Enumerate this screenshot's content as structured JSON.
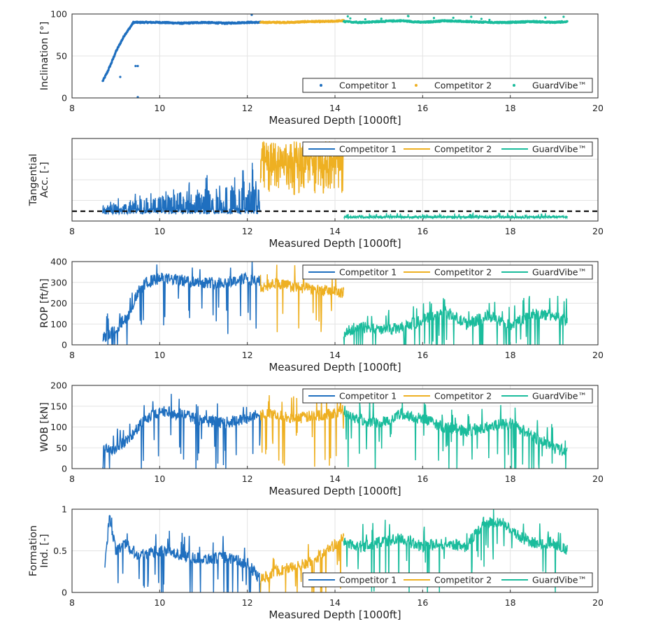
{
  "colors": {
    "competitor1": "#1f6fbf",
    "competitor2": "#eeb022",
    "guardvibe": "#1abc9c"
  },
  "chart_data": [
    {
      "type": "scatter",
      "ylabel": "Inclination [°]",
      "xlabel": "Measured Depth [1000ft]",
      "xlim": [
        8,
        20
      ],
      "ylim": [
        0,
        100
      ],
      "xticks": [
        "8",
        "10",
        "12",
        "14",
        "16",
        "18",
        "20"
      ],
      "yticks": [
        "0",
        "50",
        "100"
      ],
      "grid": true,
      "legend_position": "bottom-right",
      "series": [
        {
          "name": "Competitor 1",
          "x": [
            8.7,
            8.8,
            8.9,
            9.0,
            9.1,
            9.2,
            9.3,
            9.4,
            9.5,
            9.7,
            10.0,
            10.5,
            11.0,
            11.5,
            12.0,
            12.3
          ],
          "y": [
            20,
            30,
            42,
            55,
            65,
            75,
            82,
            90,
            90,
            90,
            90,
            89,
            90,
            89,
            90,
            90
          ]
        },
        {
          "name": "Competitor 2",
          "x": [
            12.3,
            12.6,
            13.0,
            13.4,
            13.8,
            14.2
          ],
          "y": [
            90,
            90,
            90,
            91,
            91,
            92
          ]
        },
        {
          "name": "GuardVibe™",
          "x": [
            14.2,
            14.6,
            15.0,
            15.5,
            16.0,
            16.5,
            17.0,
            17.5,
            18.0,
            18.5,
            19.0,
            19.3
          ],
          "y": [
            91,
            90,
            91,
            92,
            90,
            92,
            91,
            90,
            90,
            91,
            90,
            91
          ]
        }
      ]
    },
    {
      "type": "line",
      "ylabel": "Tangential Acc. [-]",
      "xlabel": "Measured Depth [1000ft]",
      "xlim": [
        8,
        20
      ],
      "xticks": [
        "8",
        "10",
        "12",
        "14",
        "16",
        "18",
        "20"
      ],
      "grid": true,
      "legend_position": "top-right",
      "threshold_dashed_line": true,
      "series": [
        {
          "name": "Competitor 1",
          "x_range": [
            8.7,
            12.3
          ],
          "level": [
            0.05,
            0.5
          ]
        },
        {
          "name": "Competitor 2",
          "x_range": [
            12.3,
            14.2
          ],
          "level": [
            0.3,
            1.0
          ]
        },
        {
          "name": "GuardVibe™",
          "x_range": [
            14.2,
            19.3
          ],
          "level": [
            0.0,
            0.05
          ]
        }
      ]
    },
    {
      "type": "line",
      "ylabel": "ROP [ft/h]",
      "xlabel": "Measured Depth [1000ft]",
      "xlim": [
        8,
        20
      ],
      "ylim": [
        0,
        400
      ],
      "xticks": [
        "8",
        "10",
        "12",
        "14",
        "16",
        "18",
        "20"
      ],
      "yticks": [
        "0",
        "100",
        "200",
        "300",
        "400"
      ],
      "grid": true,
      "legend_position": "top-right",
      "series": [
        {
          "name": "Competitor 1",
          "x": [
            8.7,
            8.9,
            9.1,
            9.3,
            9.5,
            9.7,
            10.0,
            10.5,
            11.0,
            11.5,
            12.0,
            12.3
          ],
          "y": [
            30,
            60,
            100,
            150,
            250,
            300,
            320,
            310,
            300,
            300,
            320,
            300
          ]
        },
        {
          "name": "Competitor 2",
          "x": [
            12.3,
            12.6,
            13.0,
            13.4,
            13.8,
            14.2
          ],
          "y": [
            270,
            300,
            280,
            270,
            260,
            250
          ]
        },
        {
          "name": "GuardVibe™",
          "x": [
            14.2,
            14.5,
            15.0,
            15.5,
            16.0,
            16.5,
            17.0,
            17.5,
            18.0,
            18.5,
            19.0,
            19.3
          ],
          "y": [
            50,
            90,
            70,
            80,
            120,
            160,
            100,
            140,
            90,
            150,
            140,
            120
          ]
        }
      ]
    },
    {
      "type": "line",
      "ylabel": "WOB [kN]",
      "xlabel": "Measured Depth [1000ft]",
      "xlim": [
        8,
        20
      ],
      "ylim": [
        0,
        200
      ],
      "xticks": [
        "8",
        "10",
        "12",
        "14",
        "16",
        "18",
        "20"
      ],
      "yticks": [
        "0",
        "50",
        "100",
        "150",
        "200"
      ],
      "grid": true,
      "legend_position": "top-right",
      "series": [
        {
          "name": "Competitor 1",
          "x": [
            8.7,
            8.9,
            9.1,
            9.3,
            9.6,
            10.0,
            10.5,
            11.0,
            11.5,
            12.0,
            12.3
          ],
          "y": [
            50,
            40,
            60,
            70,
            110,
            140,
            130,
            115,
            110,
            120,
            140
          ]
        },
        {
          "name": "Competitor 2",
          "x": [
            12.3,
            12.6,
            13.0,
            13.4,
            13.8,
            14.2
          ],
          "y": [
            130,
            130,
            120,
            125,
            130,
            140
          ]
        },
        {
          "name": "GuardVibe™",
          "x": [
            14.2,
            14.5,
            15.0,
            15.5,
            16.0,
            16.5,
            17.0,
            17.5,
            18.0,
            18.5,
            19.0,
            19.3
          ],
          "y": [
            140,
            120,
            110,
            130,
            120,
            100,
            90,
            100,
            110,
            80,
            50,
            40
          ]
        }
      ]
    },
    {
      "type": "line",
      "ylabel": "Formation Ind. [-]",
      "xlabel": "Measured Depth [1000ft]",
      "xlim": [
        8,
        20
      ],
      "ylim": [
        0,
        1
      ],
      "xticks": [
        "8",
        "10",
        "12",
        "14",
        "16",
        "18",
        "20"
      ],
      "yticks": [
        "0",
        "0.5",
        "1"
      ],
      "grid": true,
      "legend_position": "bottom-right",
      "series": [
        {
          "name": "Competitor 1",
          "x": [
            8.75,
            8.85,
            9.0,
            9.2,
            9.5,
            10.0,
            10.5,
            11.0,
            11.5,
            12.0,
            12.3
          ],
          "y": [
            0.3,
            0.9,
            0.5,
            0.6,
            0.45,
            0.5,
            0.45,
            0.4,
            0.42,
            0.35,
            0.15
          ]
        },
        {
          "name": "Competitor 2",
          "x": [
            12.3,
            12.6,
            13.0,
            13.4,
            13.8,
            14.2
          ],
          "y": [
            0.15,
            0.25,
            0.3,
            0.35,
            0.5,
            0.65
          ]
        },
        {
          "name": "GuardVibe™",
          "x": [
            14.2,
            14.6,
            15.0,
            15.5,
            16.0,
            16.5,
            17.0,
            17.4,
            17.8,
            18.1,
            18.5,
            19.0,
            19.3
          ],
          "y": [
            0.6,
            0.55,
            0.6,
            0.65,
            0.55,
            0.6,
            0.55,
            0.85,
            0.85,
            0.7,
            0.6,
            0.6,
            0.5
          ]
        }
      ]
    }
  ]
}
